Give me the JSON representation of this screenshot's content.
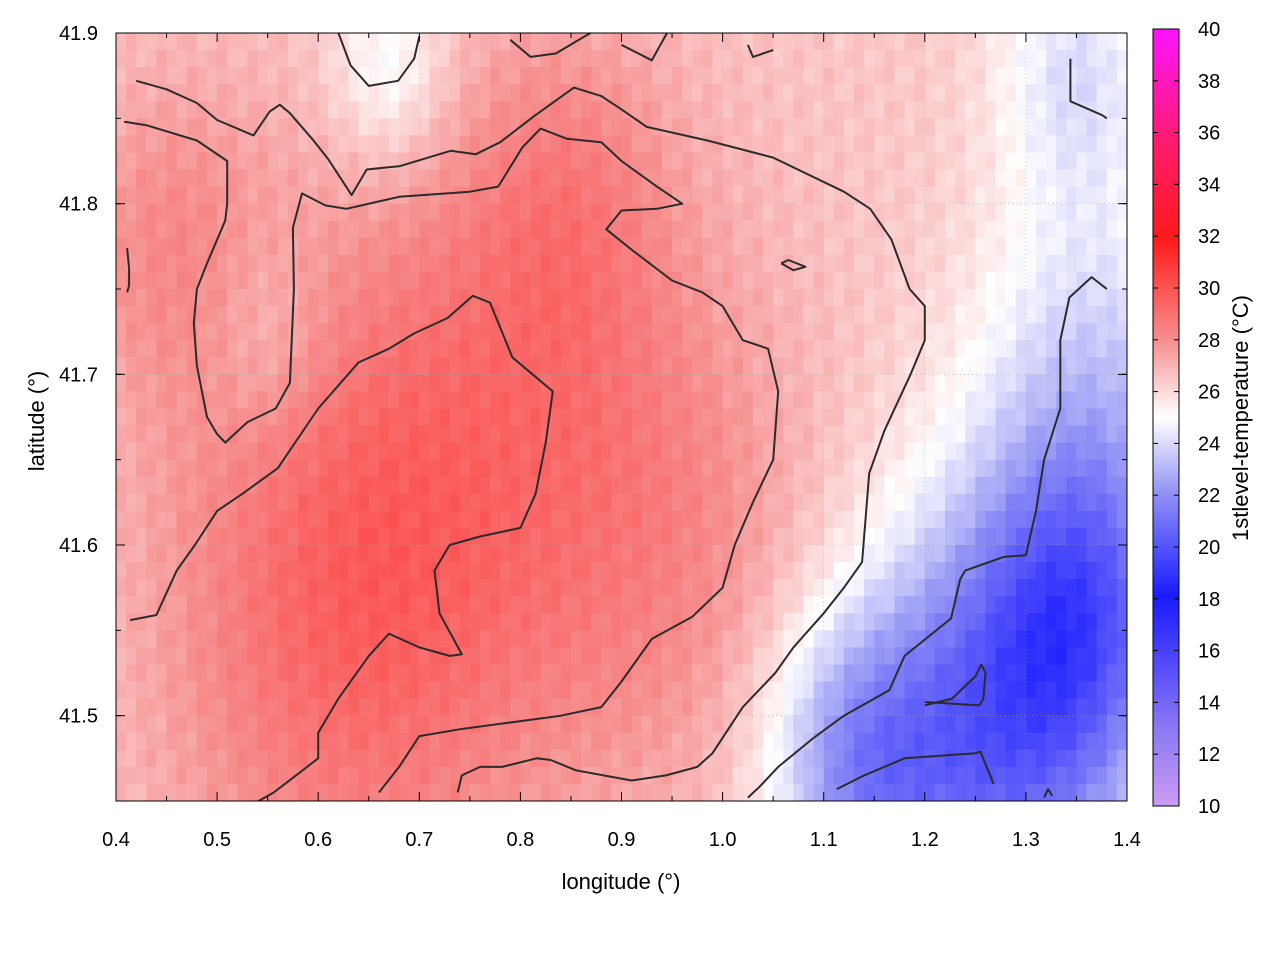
{
  "chart_data": {
    "type": "heatmap",
    "title": "",
    "xlabel": "longitude (°)",
    "ylabel": "latitude (°)",
    "colorbar_label": "1stlevel-temperature (°C)",
    "xlim": [
      0.4,
      1.4
    ],
    "ylim": [
      41.45,
      41.9
    ],
    "xticks": [
      "0.4",
      "0.5",
      "0.6",
      "0.7",
      "0.8",
      "0.9",
      "1.0",
      "1.1",
      "1.2",
      "1.3",
      "1.4"
    ],
    "yticks": [
      "41.5",
      "41.6",
      "41.7",
      "41.8",
      "41.9"
    ],
    "colorbar_ticks": [
      "10",
      "12",
      "14",
      "16",
      "18",
      "20",
      "22",
      "24",
      "26",
      "28",
      "30",
      "32",
      "34",
      "36",
      "38",
      "40"
    ],
    "colorbar_range": [
      10,
      40
    ],
    "grid": true,
    "colors": {
      "warm": "#f4a5a5",
      "neutral": "#ffffff",
      "cool": "#c9caf5",
      "contour": "#2b2b2b"
    },
    "field": {
      "base_temperature": 26.5,
      "features": [
        {
          "lon": 0.62,
          "lat": 41.56,
          "dT": 2.5,
          "radius": 0.18
        },
        {
          "lon": 0.78,
          "lat": 41.68,
          "dT": 1.8,
          "radius": 0.2
        },
        {
          "lon": 0.85,
          "lat": 41.8,
          "dT": 1.2,
          "radius": 0.1
        },
        {
          "lon": 0.45,
          "lat": 41.78,
          "dT": 1.4,
          "radius": 0.1
        },
        {
          "lon": 0.95,
          "lat": 41.6,
          "dT": 1.2,
          "radius": 0.15
        },
        {
          "lon": 1.27,
          "lat": 41.49,
          "dT": -5.5,
          "radius": 0.14
        },
        {
          "lon": 1.36,
          "lat": 41.56,
          "dT": -4.0,
          "radius": 0.1
        },
        {
          "lon": 1.13,
          "lat": 41.47,
          "dT": -3.5,
          "radius": 0.09
        },
        {
          "lon": 1.37,
          "lat": 41.7,
          "dT": -2.5,
          "radius": 0.12
        },
        {
          "lon": 1.35,
          "lat": 41.88,
          "dT": -2.2,
          "radius": 0.08
        },
        {
          "lon": 0.67,
          "lat": 41.88,
          "dT": -2.0,
          "radius": 0.06
        },
        {
          "lon": 0.55,
          "lat": 41.72,
          "dT": -1.0,
          "radius": 0.06
        }
      ]
    },
    "contours": [
      [
        [
          0.42,
          41.872
        ],
        [
          0.45,
          41.867
        ],
        [
          0.48,
          41.859
        ],
        [
          0.5,
          41.849
        ],
        [
          0.536,
          41.84
        ],
        [
          0.552,
          41.854
        ],
        [
          0.562,
          41.858
        ],
        [
          0.572,
          41.853
        ],
        [
          0.594,
          41.838
        ],
        [
          0.61,
          41.826
        ],
        [
          0.633,
          41.805
        ],
        [
          0.648,
          41.82
        ],
        [
          0.681,
          41.822
        ],
        [
          0.731,
          41.831
        ],
        [
          0.756,
          41.829
        ],
        [
          0.78,
          41.836
        ],
        [
          0.813,
          41.851
        ],
        [
          0.853,
          41.868
        ],
        [
          0.88,
          41.863
        ],
        [
          0.898,
          41.856
        ],
        [
          0.925,
          41.845
        ],
        [
          0.985,
          41.837
        ],
        [
          1.05,
          41.827
        ],
        [
          1.12,
          41.807
        ],
        [
          1.146,
          41.797
        ],
        [
          1.167,
          41.779
        ],
        [
          1.185,
          41.75
        ],
        [
          1.2,
          41.74
        ],
        [
          1.2,
          41.72
        ],
        [
          1.186,
          41.7
        ],
        [
          1.16,
          41.667
        ],
        [
          1.145,
          41.642
        ],
        [
          1.138,
          41.59
        ],
        [
          1.12,
          41.575
        ],
        [
          1.1,
          41.56
        ],
        [
          1.07,
          41.54
        ],
        [
          1.052,
          41.525
        ],
        [
          1.02,
          41.505
        ],
        [
          0.99,
          41.478
        ],
        [
          0.975,
          41.47
        ],
        [
          0.944,
          41.465
        ],
        [
          0.91,
          41.462
        ],
        [
          0.855,
          41.468
        ],
        [
          0.83,
          41.474
        ],
        [
          0.816,
          41.475
        ],
        [
          0.782,
          41.47
        ],
        [
          0.76,
          41.47
        ],
        [
          0.742,
          41.465
        ],
        [
          0.738,
          41.455
        ]
      ],
      [
        [
          0.408,
          41.848
        ],
        [
          0.43,
          41.846
        ],
        [
          0.48,
          41.837
        ],
        [
          0.51,
          41.825
        ],
        [
          0.51,
          41.8
        ],
        [
          0.508,
          41.79
        ],
        [
          0.49,
          41.765
        ],
        [
          0.48,
          41.75
        ],
        [
          0.477,
          41.73
        ],
        [
          0.48,
          41.705
        ],
        [
          0.485,
          41.69
        ],
        [
          0.49,
          41.675
        ],
        [
          0.5,
          41.665
        ],
        [
          0.508,
          41.66
        ],
        [
          0.53,
          41.672
        ],
        [
          0.558,
          41.68
        ],
        [
          0.572,
          41.695
        ],
        [
          0.576,
          41.75
        ],
        [
          0.575,
          41.786
        ],
        [
          0.584,
          41.806
        ],
        [
          0.607,
          41.799
        ],
        [
          0.628,
          41.797
        ],
        [
          0.68,
          41.804
        ],
        [
          0.75,
          41.807
        ],
        [
          0.778,
          41.81
        ],
        [
          0.802,
          41.833
        ],
        [
          0.82,
          41.844
        ],
        [
          0.846,
          41.838
        ],
        [
          0.88,
          41.836
        ],
        [
          0.9,
          41.825
        ],
        [
          0.935,
          41.81
        ],
        [
          0.96,
          41.8
        ],
        [
          0.935,
          41.797
        ],
        [
          0.9,
          41.796
        ],
        [
          0.885,
          41.785
        ],
        [
          0.91,
          41.773
        ],
        [
          0.95,
          41.755
        ],
        [
          0.98,
          41.748
        ],
        [
          1.0,
          41.74
        ],
        [
          1.02,
          41.72
        ],
        [
          1.045,
          41.715
        ],
        [
          1.055,
          41.69
        ],
        [
          1.05,
          41.65
        ],
        [
          1.03,
          41.625
        ],
        [
          1.012,
          41.6
        ],
        [
          1.0,
          41.575
        ],
        [
          0.97,
          41.558
        ],
        [
          0.93,
          41.545
        ],
        [
          0.9,
          41.52
        ],
        [
          0.88,
          41.505
        ],
        [
          0.84,
          41.5
        ],
        [
          0.79,
          41.496
        ],
        [
          0.74,
          41.492
        ],
        [
          0.7,
          41.488
        ],
        [
          0.68,
          41.47
        ],
        [
          0.66,
          41.455
        ]
      ],
      [
        [
          0.414,
          41.556
        ],
        [
          0.44,
          41.559
        ],
        [
          0.46,
          41.585
        ],
        [
          0.478,
          41.6
        ],
        [
          0.5,
          41.62
        ],
        [
          0.525,
          41.63
        ],
        [
          0.56,
          41.645
        ],
        [
          0.6,
          41.68
        ],
        [
          0.64,
          41.707
        ],
        [
          0.67,
          41.715
        ],
        [
          0.695,
          41.724
        ],
        [
          0.728,
          41.733
        ],
        [
          0.753,
          41.746
        ],
        [
          0.77,
          41.742
        ],
        [
          0.792,
          41.71
        ],
        [
          0.832,
          41.69
        ],
        [
          0.825,
          41.66
        ],
        [
          0.815,
          41.63
        ],
        [
          0.8,
          41.61
        ],
        [
          0.76,
          41.605
        ],
        [
          0.73,
          41.6
        ],
        [
          0.715,
          41.585
        ],
        [
          0.72,
          41.56
        ],
        [
          0.742,
          41.536
        ],
        [
          0.73,
          41.535
        ],
        [
          0.7,
          41.54
        ],
        [
          0.67,
          41.548
        ],
        [
          0.65,
          41.535
        ],
        [
          0.62,
          41.51
        ],
        [
          0.6,
          41.49
        ],
        [
          0.6,
          41.475
        ],
        [
          0.578,
          41.465
        ],
        [
          0.556,
          41.455
        ],
        [
          0.532,
          41.447
        ]
      ],
      [
        [
          0.411,
          41.774
        ],
        [
          0.413,
          41.762
        ],
        [
          0.413,
          41.752
        ],
        [
          0.411,
          41.748
        ]
      ],
      [
        [
          1.058,
          41.765
        ],
        [
          1.065,
          41.767
        ],
        [
          1.082,
          41.763
        ],
        [
          1.07,
          41.761
        ],
        [
          1.058,
          41.765
        ]
      ],
      [
        [
          0.62,
          41.9
        ],
        [
          0.632,
          41.881
        ],
        [
          0.65,
          41.869
        ],
        [
          0.679,
          41.872
        ],
        [
          0.695,
          41.885
        ],
        [
          0.7,
          41.898
        ]
      ],
      [
        [
          0.79,
          41.896
        ],
        [
          0.81,
          41.886
        ],
        [
          0.835,
          41.888
        ],
        [
          0.855,
          41.895
        ],
        [
          0.875,
          41.902
        ]
      ],
      [
        [
          0.9,
          41.893
        ],
        [
          0.93,
          41.884
        ],
        [
          0.945,
          41.9
        ]
      ],
      [
        [
          1.025,
          41.893
        ],
        [
          1.03,
          41.886
        ],
        [
          1.05,
          41.89
        ]
      ],
      [
        [
          1.344,
          41.885
        ],
        [
          1.344,
          41.86
        ],
        [
          1.375,
          41.852
        ],
        [
          1.38,
          41.85
        ]
      ],
      [
        [
          1.38,
          41.75
        ],
        [
          1.365,
          41.757
        ],
        [
          1.343,
          41.745
        ],
        [
          1.334,
          41.72
        ],
        [
          1.334,
          41.68
        ],
        [
          1.318,
          41.65
        ],
        [
          1.31,
          41.62
        ],
        [
          1.3,
          41.594
        ],
        [
          1.278,
          41.593
        ],
        [
          1.24,
          41.585
        ],
        [
          1.235,
          41.58
        ],
        [
          1.226,
          41.557
        ],
        [
          1.18,
          41.535
        ],
        [
          1.165,
          41.515
        ],
        [
          1.12,
          41.5
        ],
        [
          1.09,
          41.487
        ],
        [
          1.055,
          41.47
        ],
        [
          1.036,
          41.458
        ],
        [
          1.025,
          41.452
        ]
      ],
      [
        [
          1.2,
          41.506
        ],
        [
          1.227,
          41.51
        ],
        [
          1.25,
          41.523
        ],
        [
          1.256,
          41.53
        ],
        [
          1.26,
          41.525
        ],
        [
          1.258,
          41.51
        ],
        [
          1.254,
          41.506
        ],
        [
          1.2,
          41.508
        ]
      ],
      [
        [
          1.113,
          41.457
        ],
        [
          1.14,
          41.465
        ],
        [
          1.18,
          41.475
        ],
        [
          1.25,
          41.478
        ],
        [
          1.255,
          41.479
        ],
        [
          1.268,
          41.46
        ]
      ],
      [
        [
          1.318,
          41.452
        ],
        [
          1.322,
          41.457
        ],
        [
          1.326,
          41.453
        ]
      ]
    ]
  }
}
